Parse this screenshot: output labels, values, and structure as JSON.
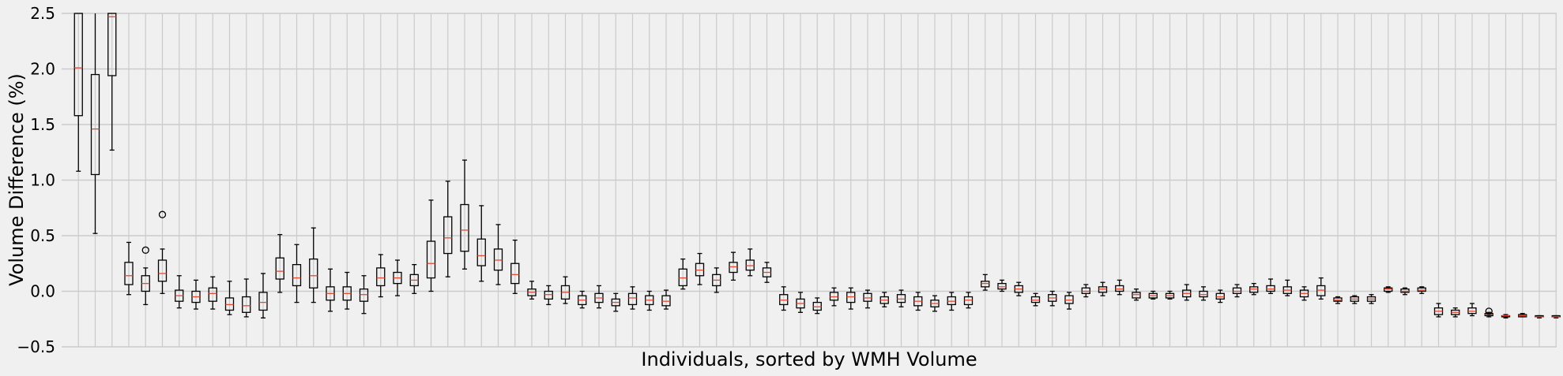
{
  "chart_data": {
    "type": "boxplot",
    "title": "",
    "xlabel": "Individuals, sorted by WMH Volume",
    "ylabel": "Volume Difference (%)",
    "ylim": [
      -0.5,
      2.5
    ],
    "yticks": [
      "−0.5",
      "0.0",
      "0.5",
      "1.0",
      "1.5",
      "2.0",
      "2.5"
    ],
    "ytick_values": [
      -0.5,
      0.0,
      0.5,
      1.0,
      1.5,
      2.0,
      2.5
    ],
    "grid": true,
    "colors": {
      "box": "#000000",
      "median": "#e24a33",
      "grid": "#cbcbcb",
      "background": "#f0f0f0"
    },
    "boxes": [
      {
        "q1": 1.58,
        "med": 2.01,
        "q3": 2.7,
        "wlo": 1.08,
        "whi": 2.7
      },
      {
        "q1": 1.05,
        "med": 1.46,
        "q3": 1.95,
        "wlo": 0.52,
        "whi": 2.7
      },
      {
        "q1": 1.94,
        "med": 2.47,
        "q3": 2.7,
        "wlo": 1.27,
        "whi": 2.7
      },
      {
        "q1": 0.06,
        "med": 0.14,
        "q3": 0.26,
        "wlo": -0.03,
        "whi": 0.44
      },
      {
        "q1": 0.0,
        "med": 0.07,
        "q3": 0.14,
        "wlo": -0.12,
        "whi": 0.21,
        "fliers": [
          0.37
        ]
      },
      {
        "q1": 0.09,
        "med": 0.16,
        "q3": 0.28,
        "wlo": -0.02,
        "whi": 0.38,
        "fliers": [
          0.69
        ]
      },
      {
        "q1": -0.09,
        "med": -0.04,
        "q3": 0.01,
        "wlo": -0.15,
        "whi": 0.14
      },
      {
        "q1": -0.1,
        "med": -0.05,
        "q3": 0.0,
        "wlo": -0.16,
        "whi": 0.1
      },
      {
        "q1": -0.09,
        "med": -0.02,
        "q3": 0.03,
        "wlo": -0.16,
        "whi": 0.13
      },
      {
        "q1": -0.17,
        "med": -0.12,
        "q3": -0.06,
        "wlo": -0.21,
        "whi": 0.09
      },
      {
        "q1": -0.19,
        "med": -0.13,
        "q3": -0.05,
        "wlo": -0.23,
        "whi": 0.11
      },
      {
        "q1": -0.17,
        "med": -0.1,
        "q3": -0.01,
        "wlo": -0.24,
        "whi": 0.16
      },
      {
        "q1": 0.11,
        "med": 0.18,
        "q3": 0.3,
        "wlo": -0.01,
        "whi": 0.51
      },
      {
        "q1": 0.05,
        "med": 0.12,
        "q3": 0.24,
        "wlo": -0.1,
        "whi": 0.42
      },
      {
        "q1": 0.03,
        "med": 0.14,
        "q3": 0.29,
        "wlo": -0.1,
        "whi": 0.57
      },
      {
        "q1": -0.08,
        "med": -0.02,
        "q3": 0.04,
        "wlo": -0.18,
        "whi": 0.2
      },
      {
        "q1": -0.08,
        "med": -0.02,
        "q3": 0.04,
        "wlo": -0.16,
        "whi": 0.17
      },
      {
        "q1": -0.09,
        "med": -0.03,
        "q3": 0.02,
        "wlo": -0.2,
        "whi": 0.14
      },
      {
        "q1": 0.05,
        "med": 0.12,
        "q3": 0.21,
        "wlo": -0.05,
        "whi": 0.33
      },
      {
        "q1": 0.07,
        "med": 0.12,
        "q3": 0.17,
        "wlo": -0.04,
        "whi": 0.28
      },
      {
        "q1": 0.05,
        "med": 0.1,
        "q3": 0.15,
        "wlo": -0.02,
        "whi": 0.24
      },
      {
        "q1": 0.12,
        "med": 0.25,
        "q3": 0.45,
        "wlo": 0.0,
        "whi": 0.82
      },
      {
        "q1": 0.34,
        "med": 0.48,
        "q3": 0.67,
        "wlo": 0.13,
        "whi": 0.99
      },
      {
        "q1": 0.36,
        "med": 0.55,
        "q3": 0.78,
        "wlo": 0.2,
        "whi": 1.18
      },
      {
        "q1": 0.23,
        "med": 0.32,
        "q3": 0.47,
        "wlo": 0.09,
        "whi": 0.77
      },
      {
        "q1": 0.19,
        "med": 0.28,
        "q3": 0.38,
        "wlo": 0.06,
        "whi": 0.6
      },
      {
        "q1": 0.07,
        "med": 0.15,
        "q3": 0.25,
        "wlo": -0.02,
        "whi": 0.46
      },
      {
        "q1": -0.04,
        "med": -0.01,
        "q3": 0.02,
        "wlo": -0.07,
        "whi": 0.09
      },
      {
        "q1": -0.07,
        "med": -0.03,
        "q3": 0.0,
        "wlo": -0.12,
        "whi": 0.05
      },
      {
        "q1": -0.07,
        "med": -0.01,
        "q3": 0.05,
        "wlo": -0.11,
        "whi": 0.13
      },
      {
        "q1": -0.12,
        "med": -0.08,
        "q3": -0.04,
        "wlo": -0.15,
        "whi": 0.0
      },
      {
        "q1": -0.1,
        "med": -0.06,
        "q3": -0.02,
        "wlo": -0.15,
        "whi": 0.05
      },
      {
        "q1": -0.13,
        "med": -0.1,
        "q3": -0.07,
        "wlo": -0.18,
        "whi": -0.02
      },
      {
        "q1": -0.12,
        "med": -0.06,
        "q3": -0.02,
        "wlo": -0.16,
        "whi": 0.04
      },
      {
        "q1": -0.12,
        "med": -0.08,
        "q3": -0.04,
        "wlo": -0.17,
        "whi": 0.0
      },
      {
        "q1": -0.13,
        "med": -0.09,
        "q3": -0.04,
        "wlo": -0.16,
        "whi": 0.01
      },
      {
        "q1": 0.05,
        "med": 0.12,
        "q3": 0.2,
        "wlo": 0.02,
        "whi": 0.29
      },
      {
        "q1": 0.14,
        "med": 0.19,
        "q3": 0.25,
        "wlo": 0.06,
        "whi": 0.34
      },
      {
        "q1": 0.05,
        "med": 0.1,
        "q3": 0.15,
        "wlo": -0.01,
        "whi": 0.21
      },
      {
        "q1": 0.17,
        "med": 0.22,
        "q3": 0.26,
        "wlo": 0.1,
        "whi": 0.35
      },
      {
        "q1": 0.19,
        "med": 0.23,
        "q3": 0.28,
        "wlo": 0.14,
        "whi": 0.38
      },
      {
        "q1": 0.13,
        "med": 0.17,
        "q3": 0.21,
        "wlo": 0.08,
        "whi": 0.26
      },
      {
        "q1": -0.12,
        "med": -0.08,
        "q3": -0.03,
        "wlo": -0.17,
        "whi": 0.04
      },
      {
        "q1": -0.15,
        "med": -0.11,
        "q3": -0.07,
        "wlo": -0.19,
        "whi": -0.01
      },
      {
        "q1": -0.17,
        "med": -0.14,
        "q3": -0.1,
        "wlo": -0.2,
        "whi": -0.06
      },
      {
        "q1": -0.08,
        "med": -0.05,
        "q3": -0.01,
        "wlo": -0.13,
        "whi": 0.03
      },
      {
        "q1": -0.1,
        "med": -0.05,
        "q3": -0.01,
        "wlo": -0.16,
        "whi": 0.03
      },
      {
        "q1": -0.09,
        "med": -0.06,
        "q3": -0.02,
        "wlo": -0.15,
        "whi": 0.01
      },
      {
        "q1": -0.11,
        "med": -0.08,
        "q3": -0.05,
        "wlo": -0.14,
        "whi": -0.01
      },
      {
        "q1": -0.1,
        "med": -0.07,
        "q3": -0.03,
        "wlo": -0.14,
        "whi": 0.01
      },
      {
        "q1": -0.13,
        "med": -0.09,
        "q3": -0.05,
        "wlo": -0.17,
        "whi": -0.01
      },
      {
        "q1": -0.14,
        "med": -0.11,
        "q3": -0.08,
        "wlo": -0.18,
        "whi": -0.04
      },
      {
        "q1": -0.12,
        "med": -0.09,
        "q3": -0.05,
        "wlo": -0.17,
        "whi": -0.01
      },
      {
        "q1": -0.12,
        "med": -0.08,
        "q3": -0.05,
        "wlo": -0.15,
        "whi": -0.01
      },
      {
        "q1": 0.04,
        "med": 0.07,
        "q3": 0.09,
        "wlo": 0.01,
        "whi": 0.15
      },
      {
        "q1": 0.02,
        "med": 0.04,
        "q3": 0.07,
        "wlo": 0.0,
        "whi": 0.1
      },
      {
        "q1": -0.01,
        "med": 0.02,
        "q3": 0.05,
        "wlo": -0.04,
        "whi": 0.08
      },
      {
        "q1": -0.1,
        "med": -0.08,
        "q3": -0.05,
        "wlo": -0.13,
        "whi": -0.02
      },
      {
        "q1": -0.09,
        "med": -0.06,
        "q3": -0.03,
        "wlo": -0.13,
        "whi": 0.0
      },
      {
        "q1": -0.11,
        "med": -0.08,
        "q3": -0.04,
        "wlo": -0.16,
        "whi": -0.01
      },
      {
        "q1": -0.02,
        "med": 0.0,
        "q3": 0.03,
        "wlo": -0.05,
        "whi": 0.06
      },
      {
        "q1": -0.01,
        "med": 0.02,
        "q3": 0.04,
        "wlo": -0.04,
        "whi": 0.08
      },
      {
        "q1": 0.0,
        "med": 0.02,
        "q3": 0.05,
        "wlo": -0.03,
        "whi": 0.1
      },
      {
        "q1": -0.06,
        "med": -0.03,
        "q3": -0.01,
        "wlo": -0.08,
        "whi": 0.02
      },
      {
        "q1": -0.06,
        "med": -0.04,
        "q3": -0.02,
        "wlo": -0.07,
        "whi": 0.0
      },
      {
        "q1": -0.06,
        "med": -0.04,
        "q3": -0.02,
        "wlo": -0.07,
        "whi": 0.0
      },
      {
        "q1": -0.05,
        "med": -0.02,
        "q3": 0.01,
        "wlo": -0.08,
        "whi": 0.06
      },
      {
        "q1": -0.05,
        "med": -0.03,
        "q3": 0.0,
        "wlo": -0.08,
        "whi": 0.04
      },
      {
        "q1": -0.07,
        "med": -0.05,
        "q3": -0.02,
        "wlo": -0.1,
        "whi": 0.01
      },
      {
        "q1": -0.02,
        "med": 0.0,
        "q3": 0.03,
        "wlo": -0.05,
        "whi": 0.06
      },
      {
        "q1": -0.01,
        "med": 0.02,
        "q3": 0.04,
        "wlo": -0.03,
        "whi": 0.07
      },
      {
        "q1": 0.0,
        "med": 0.02,
        "q3": 0.05,
        "wlo": -0.02,
        "whi": 0.11
      },
      {
        "q1": -0.02,
        "med": 0.01,
        "q3": 0.04,
        "wlo": -0.04,
        "whi": 0.1
      },
      {
        "q1": -0.05,
        "med": -0.02,
        "q3": 0.01,
        "wlo": -0.08,
        "whi": 0.04
      },
      {
        "q1": -0.04,
        "med": 0.01,
        "q3": 0.05,
        "wlo": -0.07,
        "whi": 0.12
      },
      {
        "q1": -0.09,
        "med": -0.08,
        "q3": -0.06,
        "wlo": -0.11,
        "whi": -0.05
      },
      {
        "q1": -0.09,
        "med": -0.07,
        "q3": -0.05,
        "wlo": -0.11,
        "whi": -0.04
      },
      {
        "q1": -0.09,
        "med": -0.07,
        "q3": -0.05,
        "wlo": -0.11,
        "whi": -0.03
      },
      {
        "q1": 0.0,
        "med": 0.02,
        "q3": 0.03,
        "wlo": -0.01,
        "whi": 0.04
      },
      {
        "q1": -0.01,
        "med": 0.0,
        "q3": 0.02,
        "wlo": -0.03,
        "whi": 0.03
      },
      {
        "q1": 0.0,
        "med": 0.01,
        "q3": 0.03,
        "wlo": -0.02,
        "whi": 0.04
      },
      {
        "q1": -0.21,
        "med": -0.18,
        "q3": -0.15,
        "wlo": -0.23,
        "whi": -0.11
      },
      {
        "q1": -0.21,
        "med": -0.19,
        "q3": -0.17,
        "wlo": -0.23,
        "whi": -0.15
      },
      {
        "q1": -0.2,
        "med": -0.18,
        "q3": -0.15,
        "wlo": -0.22,
        "whi": -0.11
      },
      {
        "q1": -0.22,
        "med": -0.21,
        "q3": -0.2,
        "wlo": -0.23,
        "whi": -0.19,
        "fliers": [
          -0.18
        ]
      },
      {
        "q1": -0.23,
        "med": -0.22,
        "q3": -0.22,
        "wlo": -0.24,
        "whi": -0.21
      },
      {
        "q1": -0.23,
        "med": -0.22,
        "q3": -0.21,
        "wlo": -0.23,
        "whi": -0.2
      },
      {
        "q1": -0.23,
        "med": -0.23,
        "q3": -0.22,
        "wlo": -0.24,
        "whi": -0.22
      },
      {
        "q1": -0.23,
        "med": -0.23,
        "q3": -0.22,
        "wlo": -0.24,
        "whi": -0.22
      },
      {
        "q1": -0.24,
        "med": -0.24,
        "q3": -0.23,
        "wlo": -0.25,
        "whi": -0.23
      }
    ]
  }
}
